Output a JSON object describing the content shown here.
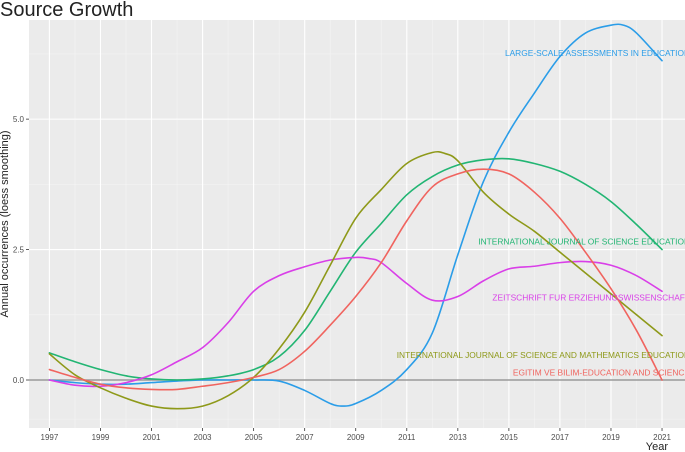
{
  "chart_data": {
    "type": "line",
    "title": "Source Growth",
    "xlabel": "Year",
    "ylabel": "Annual occurrences (loess smoothing)",
    "xlim": [
      1996.2,
      2021.9
    ],
    "ylim": [
      -0.92,
      6.9
    ],
    "x_ticks": [
      1997,
      1999,
      2001,
      2003,
      2005,
      2007,
      2009,
      2011,
      2013,
      2015,
      2017,
      2019,
      2021
    ],
    "x_tick_labels": [
      "1997",
      "1999",
      "2001",
      "2003",
      "2005",
      "2007",
      "2009",
      "2011",
      "2013",
      "2015",
      "2017",
      "2019",
      "2021"
    ],
    "y_ticks": [
      0,
      2.5,
      5
    ],
    "y_tick_labels": [
      "0.0",
      "2.5",
      "5.0"
    ],
    "grid": true,
    "series": [
      {
        "name": "LARGE-SCALE ASSESSMENTS IN EDUCATION",
        "color": "#2B9DE8",
        "label_year": 2021,
        "label_value": 6.27,
        "x": [
          1997,
          1998,
          1999,
          2000,
          2001,
          2002,
          2003,
          2004,
          2005,
          2006,
          2007,
          2008,
          2008.5,
          2009,
          2010,
          2011,
          2012,
          2013,
          2014,
          2015,
          2016,
          2017,
          2018,
          2019,
          2019.5,
          2020,
          2021
        ],
        "values": [
          0,
          -0.05,
          -0.08,
          -0.08,
          -0.05,
          -0.02,
          0.0,
          0.0,
          0.0,
          -0.02,
          -0.2,
          -0.45,
          -0.5,
          -0.45,
          -0.2,
          0.2,
          0.9,
          2.4,
          3.8,
          4.75,
          5.5,
          6.2,
          6.65,
          6.8,
          6.8,
          6.65,
          6.12
        ]
      },
      {
        "name": "INTERNATIONAL JOURNAL OF SCIENCE EDUCATION",
        "color": "#22B573",
        "label_year": 2021,
        "label_value": 2.65,
        "x": [
          1997,
          1998,
          1999,
          2000,
          2001,
          2002,
          2003,
          2004,
          2005,
          2006,
          2007,
          2008,
          2009,
          2010,
          2011,
          2012,
          2013,
          2014,
          2015,
          2016,
          2017,
          2018,
          2019,
          2020,
          2021
        ],
        "values": [
          0.52,
          0.35,
          0.2,
          0.08,
          0.02,
          0.0,
          0.02,
          0.08,
          0.2,
          0.45,
          0.95,
          1.7,
          2.45,
          3.0,
          3.55,
          3.9,
          4.12,
          4.22,
          4.24,
          4.15,
          4.0,
          3.75,
          3.42,
          2.98,
          2.5
        ]
      },
      {
        "name": "ZEITSCHRIFT FUR ERZIEHUNGSWISSENSCHAFT",
        "color": "#D93FE8",
        "label_year": 2021,
        "label_value": 1.58,
        "x": [
          1997,
          1998,
          1999,
          2000,
          2001,
          2002,
          2003,
          2004,
          2005,
          2006,
          2007,
          2008,
          2009,
          2009.5,
          2010,
          2011,
          2012,
          2013,
          2014,
          2015,
          2016,
          2017,
          2018,
          2019,
          2020,
          2021
        ],
        "values": [
          0,
          -0.1,
          -0.12,
          -0.05,
          0.1,
          0.35,
          0.62,
          1.1,
          1.7,
          2.0,
          2.17,
          2.3,
          2.35,
          2.33,
          2.25,
          1.85,
          1.53,
          1.6,
          1.9,
          2.13,
          2.18,
          2.25,
          2.27,
          2.2,
          2.0,
          1.7
        ]
      },
      {
        "name": "INTERNATIONAL JOURNAL OF SCIENCE AND MATHEMATICS EDUCATION",
        "color": "#8E9919",
        "label_year": 2021,
        "label_value": 0.48,
        "x": [
          1997,
          1998,
          1999,
          2000,
          2001,
          2002,
          2003,
          2004,
          2005,
          2006,
          2007,
          2008,
          2009,
          2010,
          2011,
          2012,
          2012.5,
          2013,
          2014,
          2015,
          2016,
          2017,
          2018,
          2019,
          2020,
          2021
        ],
        "values": [
          0.5,
          0.1,
          -0.15,
          -0.35,
          -0.5,
          -0.55,
          -0.5,
          -0.3,
          0.05,
          0.6,
          1.3,
          2.2,
          3.1,
          3.65,
          4.15,
          4.36,
          4.34,
          4.2,
          3.6,
          3.18,
          2.85,
          2.45,
          2.05,
          1.65,
          1.25,
          0.85
        ]
      },
      {
        "name": "EGITIM VE BILIM-EDUCATION AND SCIENCE",
        "color": "#F0645F",
        "label_year": 2021,
        "label_value": 0.14,
        "x": [
          1997,
          1998,
          1999,
          2000,
          2001,
          2002,
          2003,
          2004,
          2005,
          2006,
          2007,
          2008,
          2009,
          2010,
          2011,
          2012,
          2013,
          2014,
          2015,
          2016,
          2017,
          2018,
          2019,
          2020,
          2021
        ],
        "values": [
          0.2,
          0.05,
          -0.08,
          -0.15,
          -0.18,
          -0.18,
          -0.12,
          -0.05,
          0.05,
          0.2,
          0.55,
          1.05,
          1.6,
          2.25,
          3.05,
          3.7,
          3.95,
          4.04,
          3.95,
          3.6,
          3.1,
          2.45,
          1.75,
          0.95,
          0.0
        ]
      }
    ]
  }
}
